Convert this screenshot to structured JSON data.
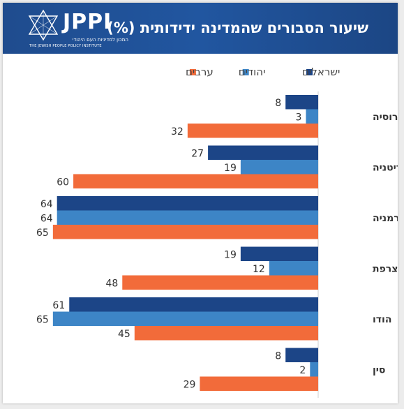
{
  "header": {
    "title": "שיעור הסבורים שהמדינה ידידותית (%)",
    "logo_text": "JPPI",
    "logo_subtitle_he": "המכון למדיניות העם היהודי",
    "logo_subtitle_en": "THE JEWISH PEOPLE POLICY INSTITUTE"
  },
  "colors": {
    "header_bg": "#1f4c8e",
    "israelis": "#1c4587",
    "jews": "#3d85c6",
    "arabs": "#f26b3a"
  },
  "chart_data": {
    "type": "bar",
    "orientation": "horizontal",
    "title": "שיעור הסבורים שהמדינה ידידותית (%)",
    "categories": [
      "רוסיה",
      "בריטניה",
      "גרמניה",
      "צרפת",
      "הודו",
      "סין"
    ],
    "series": [
      {
        "name": "ישראלים",
        "color": "#1c4587",
        "values": [
          8,
          27,
          64,
          19,
          61,
          8
        ]
      },
      {
        "name": "יהודים",
        "color": "#3d85c6",
        "values": [
          3,
          19,
          64,
          12,
          65,
          2
        ]
      },
      {
        "name": "ערבים",
        "color": "#f26b3a",
        "values": [
          32,
          60,
          65,
          48,
          45,
          29
        ]
      }
    ],
    "xlim": [
      0,
      66
    ],
    "legend_position": "top-right",
    "grid": false,
    "data_labels": true
  }
}
